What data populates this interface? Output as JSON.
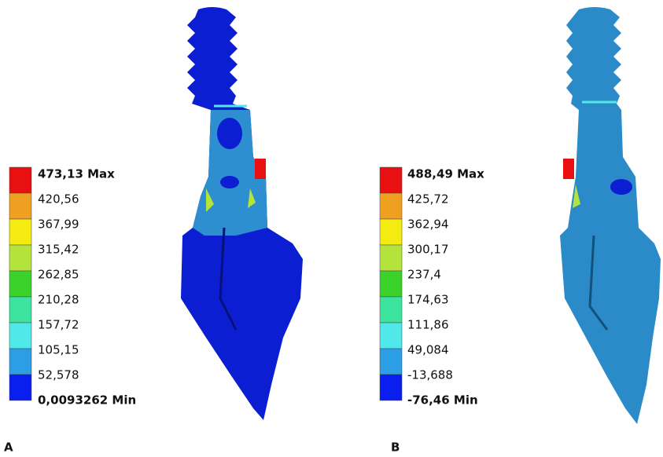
{
  "panels": [
    {
      "label": "A",
      "legend": {
        "labels": [
          "473,13 Max",
          "420,56",
          "367,99",
          "315,42",
          "262,85",
          "210,28",
          "157,72",
          "105,15",
          "52,578",
          "0,0093262 Min"
        ],
        "colors": [
          "#e81010",
          "#f0a020",
          "#f4ec10",
          "#b4e43c",
          "#3cd22c",
          "#3ce4a0",
          "#50e8e8",
          "#2c9ee6",
          "#0a1ef0"
        ]
      }
    },
    {
      "label": "B",
      "legend": {
        "labels": [
          "488,49 Max",
          "425,72",
          "362,94",
          "300,17",
          "237,4",
          "174,63",
          "111,86",
          "49,084",
          "-13,688",
          "-76,46 Min"
        ],
        "colors": [
          "#e81010",
          "#f0a020",
          "#f4ec10",
          "#b4e43c",
          "#3cd22c",
          "#3ce4a0",
          "#50e8e8",
          "#2c9ee6",
          "#0a1ef0"
        ]
      }
    }
  ]
}
